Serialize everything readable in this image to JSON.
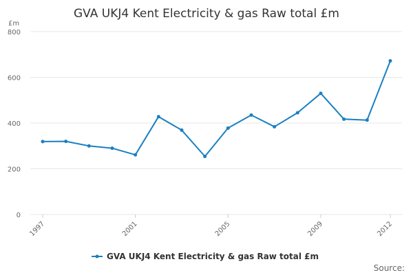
{
  "chart_data": {
    "type": "line",
    "title": "GVA UKJ4 Kent Electricity & gas Raw total £m",
    "unit_label": "£m",
    "xlabel": "",
    "ylabel": "",
    "ylim": [
      0,
      800
    ],
    "yticks": [
      0,
      200,
      400,
      600,
      800
    ],
    "xlim": [
      1997,
      2012
    ],
    "xticks": [
      1997,
      2001,
      2005,
      2009,
      2012
    ],
    "grid": true,
    "legend_position": "bottom",
    "source_label": "Source:",
    "series": [
      {
        "name": "GVA UKJ4 Kent Electricity & gas Raw total £m",
        "color": "#1a7fc1",
        "x": [
          1997,
          1998,
          1999,
          2000,
          2001,
          2002,
          2003,
          2004,
          2005,
          2006,
          2007,
          2008,
          2009,
          2010,
          2011,
          2012
        ],
        "values": [
          319,
          320,
          300,
          290,
          261,
          428,
          369,
          254,
          378,
          435,
          384,
          445,
          530,
          417,
          413,
          672
        ]
      }
    ]
  }
}
